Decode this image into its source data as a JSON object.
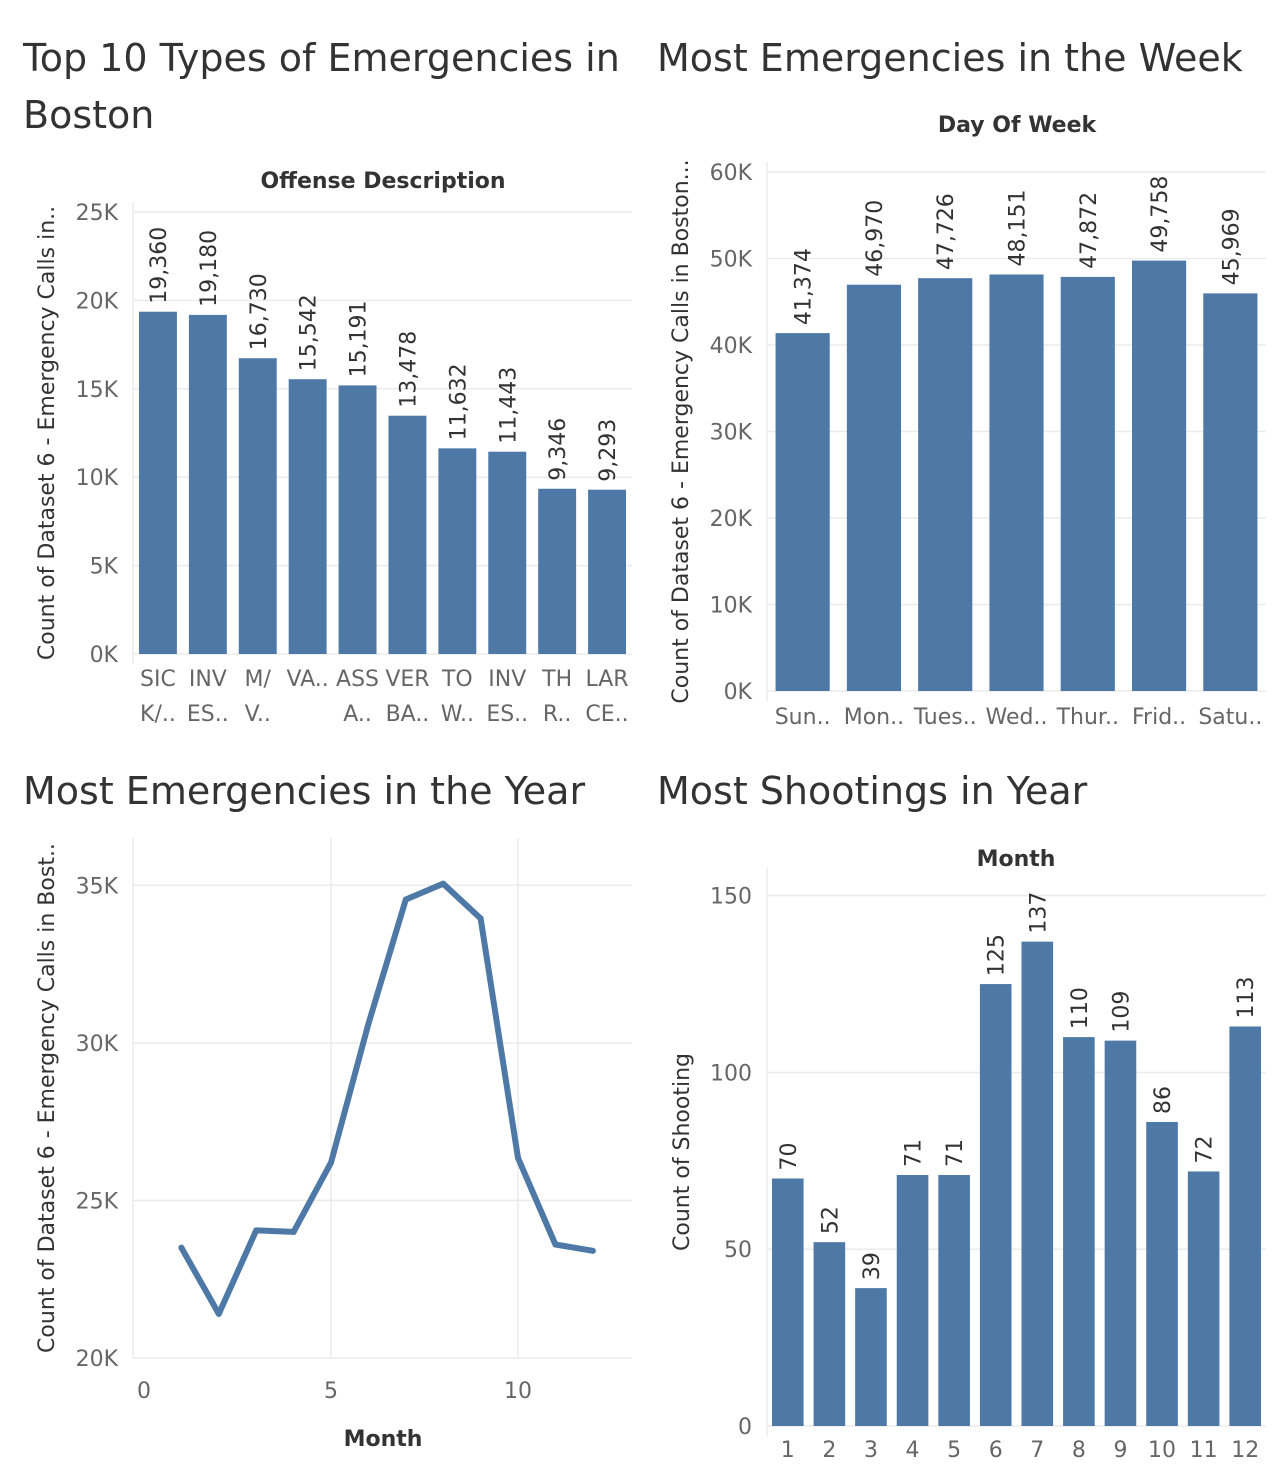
{
  "colors": {
    "bar": "#4e79a7",
    "grid": "#ebebeb",
    "text": "#333333",
    "tick": "#666666"
  },
  "panels": {
    "top_types": {
      "title": "Top 10 Types of Emergencies in Boston"
    },
    "week": {
      "title": "Most Emergencies in the Week"
    },
    "year": {
      "title": "Most Emergencies in  the Year"
    },
    "shootings": {
      "title": "Most Shootings in Year"
    }
  },
  "chart_data": [
    {
      "id": "top_types",
      "type": "bar",
      "column_header": "Offense Description",
      "ylabel": "Count of Dataset 6 - Emergency Calls in..",
      "ylim": [
        0,
        25000
      ],
      "yticks": [
        0,
        5000,
        10000,
        15000,
        20000,
        25000
      ],
      "ytick_labels": [
        "0K",
        "5K",
        "10K",
        "15K",
        "20K",
        "25K"
      ],
      "categories": [
        [
          "SIC",
          "K/.."
        ],
        [
          "INV",
          "ES.."
        ],
        [
          "M/",
          "V.."
        ],
        [
          "VA.."
        ],
        [
          "ASS",
          "A.."
        ],
        [
          "VER",
          "BA.."
        ],
        [
          "TO",
          "W.."
        ],
        [
          "INV",
          "ES.."
        ],
        [
          "TH",
          "R.."
        ],
        [
          "LAR",
          "CE.."
        ]
      ],
      "values": [
        19360,
        19180,
        16730,
        15542,
        15191,
        13478,
        11632,
        11443,
        9346,
        9293
      ],
      "value_labels": [
        "19,360",
        "19,180",
        "16,730",
        "15,542",
        "15,191",
        "13,478",
        "11,632",
        "11,443",
        "9,346",
        "9,293"
      ]
    },
    {
      "id": "week",
      "type": "bar",
      "column_header": "Day Of Week",
      "ylabel": "Count of Dataset 6 - Emergency Calls in Boston...",
      "ylim": [
        0,
        60000
      ],
      "yticks": [
        0,
        10000,
        20000,
        30000,
        40000,
        50000,
        60000
      ],
      "ytick_labels": [
        "0K",
        "10K",
        "20K",
        "30K",
        "40K",
        "50K",
        "60K"
      ],
      "categories": [
        [
          "Sun.."
        ],
        [
          "Mon.."
        ],
        [
          "Tues.."
        ],
        [
          "Wed.."
        ],
        [
          "Thur.."
        ],
        [
          "Frid.."
        ],
        [
          "Satu.."
        ]
      ],
      "values": [
        41374,
        46970,
        47726,
        48151,
        47872,
        49758,
        45969
      ],
      "value_labels": [
        "41,374",
        "46,970",
        "47,726",
        "48,151",
        "47,872",
        "49,758",
        "45,969"
      ]
    },
    {
      "id": "year",
      "type": "line",
      "xlabel": "Month",
      "ylabel": "Count of Dataset 6 - Emergency Calls in Bost..",
      "xlim": [
        0,
        12.8
      ],
      "ylim": [
        20000,
        36500
      ],
      "xticks": [
        0,
        5,
        10
      ],
      "xtick_labels": [
        "0",
        "5",
        "10"
      ],
      "yticks": [
        20000,
        25000,
        30000,
        35000
      ],
      "ytick_labels": [
        "20K",
        "25K",
        "30K",
        "35K"
      ],
      "x": [
        1,
        2,
        3,
        4,
        5,
        6,
        7,
        8,
        9,
        10,
        11,
        12
      ],
      "y": [
        23500,
        21400,
        24050,
        24000,
        26200,
        30600,
        34550,
        35050,
        33950,
        26350,
        23600,
        23400
      ]
    },
    {
      "id": "shootings",
      "type": "bar",
      "column_header": "Month",
      "ylabel": "Count of Shooting",
      "ylim": [
        0,
        155
      ],
      "yticks": [
        0,
        50,
        100,
        150
      ],
      "ytick_labels": [
        "0",
        "50",
        "100",
        "150"
      ],
      "categories": [
        [
          "1"
        ],
        [
          "2"
        ],
        [
          "3"
        ],
        [
          "4"
        ],
        [
          "5"
        ],
        [
          "6"
        ],
        [
          "7"
        ],
        [
          "8"
        ],
        [
          "9"
        ],
        [
          "10"
        ],
        [
          "11"
        ],
        [
          "12"
        ]
      ],
      "values": [
        70,
        52,
        39,
        71,
        71,
        125,
        137,
        110,
        109,
        86,
        72,
        113
      ],
      "value_labels": [
        "70",
        "52",
        "39",
        "71",
        "71",
        "125",
        "137",
        "110",
        "109",
        "86",
        "72",
        "113"
      ]
    }
  ]
}
